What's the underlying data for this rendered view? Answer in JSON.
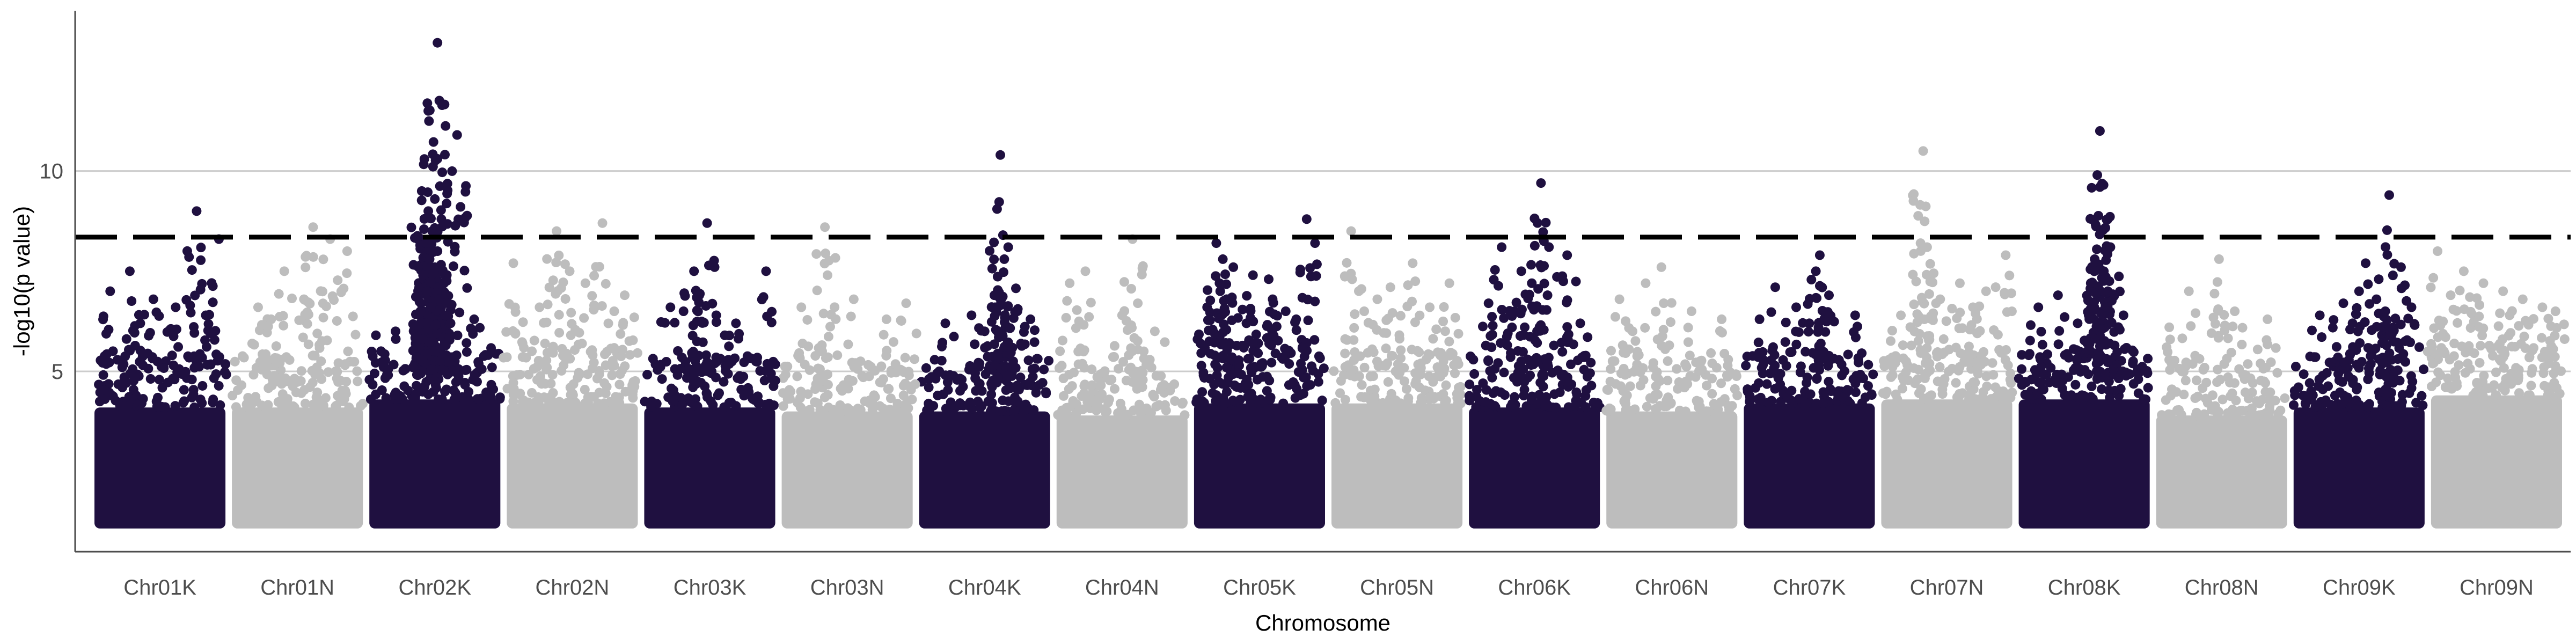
{
  "chart_data": {
    "type": "scatter",
    "subtype": "manhattan",
    "title": "",
    "xlabel": "Chromosome",
    "ylabel": "-log10(p value)",
    "ylim": [
      0.5,
      14
    ],
    "yticks": [
      5,
      10
    ],
    "grid": {
      "horizontal_major": true,
      "vertical": false
    },
    "threshold": {
      "y": 8.35,
      "style": "dashed",
      "color": "#000000"
    },
    "colors": {
      "odd": "#1f1040",
      "even": "#bdbdbd",
      "grid": "#cccccc",
      "axis": "#4d4d4d"
    },
    "chromosomes": [
      {
        "name": "Chr01K",
        "base_max": 4.7,
        "peaks": [
          [
            0.78,
            9.0
          ],
          [
            0.95,
            8.3
          ],
          [
            0.27,
            7.5
          ],
          [
            0.12,
            7.0
          ],
          [
            0.45,
            6.8
          ],
          [
            0.62,
            6.6
          ],
          [
            0.85,
            6.4
          ],
          [
            0.35,
            6.2
          ]
        ]
      },
      {
        "name": "Chr01N",
        "base_max": 4.7,
        "peaks": [
          [
            0.62,
            8.6
          ],
          [
            0.88,
            8.0
          ],
          [
            0.75,
            8.3
          ],
          [
            0.4,
            7.5
          ],
          [
            0.2,
            6.6
          ],
          [
            0.55,
            6.8
          ],
          [
            0.3,
            6.3
          ]
        ]
      },
      {
        "name": "Chr02K",
        "base_max": 4.9,
        "peaks": [
          [
            0.52,
            13.2
          ],
          [
            0.45,
            11.5
          ],
          [
            0.67,
            10.9
          ],
          [
            0.42,
            10.3
          ],
          [
            0.4,
            9.5
          ],
          [
            0.5,
            9.3
          ],
          [
            0.45,
            9.0
          ],
          [
            0.55,
            8.8
          ],
          [
            0.48,
            8.5
          ],
          [
            0.43,
            8.2
          ],
          [
            0.52,
            8.0
          ],
          [
            0.46,
            7.8
          ],
          [
            0.5,
            7.6
          ],
          [
            0.41,
            7.4
          ],
          [
            0.57,
            7.2
          ],
          [
            0.44,
            7.0
          ],
          [
            0.53,
            6.8
          ],
          [
            0.47,
            6.6
          ],
          [
            0.39,
            6.5
          ],
          [
            0.58,
            6.4
          ],
          [
            0.62,
            6.2
          ],
          [
            0.35,
            6.1
          ],
          [
            0.8,
            6.3
          ],
          [
            0.2,
            6.0
          ],
          [
            0.05,
            5.9
          ]
        ]
      },
      {
        "name": "Chr02N",
        "base_max": 4.8,
        "peaks": [
          [
            0.73,
            8.7
          ],
          [
            0.38,
            8.5
          ],
          [
            0.05,
            7.7
          ],
          [
            0.48,
            7.5
          ],
          [
            0.9,
            6.9
          ],
          [
            0.6,
            7.2
          ],
          [
            0.25,
            6.6
          ],
          [
            0.82,
            6.5
          ]
        ]
      },
      {
        "name": "Chr03K",
        "base_max": 4.7,
        "peaks": [
          [
            0.48,
            8.7
          ],
          [
            0.93,
            7.5
          ],
          [
            0.38,
            7.5
          ],
          [
            0.2,
            6.6
          ],
          [
            0.55,
            6.4
          ],
          [
            0.7,
            6.2
          ],
          [
            0.3,
            6.5
          ],
          [
            0.42,
            6.9
          ]
        ]
      },
      {
        "name": "Chr03N",
        "base_max": 4.6,
        "peaks": [
          [
            0.33,
            8.6
          ],
          [
            0.35,
            7.4
          ],
          [
            0.55,
            6.8
          ],
          [
            0.8,
            6.3
          ],
          [
            0.15,
            6.6
          ],
          [
            0.95,
            6.7
          ]
        ]
      },
      {
        "name": "Chr04K",
        "base_max": 4.6,
        "peaks": [
          [
            0.62,
            10.4
          ],
          [
            0.64,
            8.4
          ],
          [
            0.68,
            8.1
          ],
          [
            0.65,
            7.8
          ],
          [
            0.6,
            7.0
          ],
          [
            0.58,
            6.6
          ],
          [
            0.4,
            6.4
          ],
          [
            0.75,
            6.5
          ],
          [
            0.2,
            6.2
          ],
          [
            0.85,
            6.3
          ],
          [
            0.5,
            6.0
          ]
        ]
      },
      {
        "name": "Chr04N",
        "base_max": 4.5,
        "peaks": [
          [
            0.58,
            8.3
          ],
          [
            0.22,
            7.5
          ],
          [
            0.1,
            7.2
          ],
          [
            0.62,
            6.7
          ],
          [
            0.5,
            6.4
          ],
          [
            0.75,
            6.0
          ]
        ]
      },
      {
        "name": "Chr05K",
        "base_max": 4.8,
        "peaks": [
          [
            0.86,
            8.8
          ],
          [
            0.17,
            8.2
          ],
          [
            0.22,
            7.8
          ],
          [
            0.3,
            7.6
          ],
          [
            0.45,
            7.4
          ],
          [
            0.57,
            7.3
          ],
          [
            0.2,
            7.0
          ],
          [
            0.6,
            6.8
          ],
          [
            0.7,
            6.5
          ],
          [
            0.1,
            6.6
          ],
          [
            0.4,
            6.2
          ],
          [
            0.78,
            6.3
          ]
        ]
      },
      {
        "name": "Chr05N",
        "base_max": 4.8,
        "peaks": [
          [
            0.15,
            8.5
          ],
          [
            0.62,
            7.7
          ],
          [
            0.45,
            7.1
          ],
          [
            0.35,
            6.8
          ],
          [
            0.9,
            7.2
          ],
          [
            0.75,
            6.6
          ],
          [
            0.25,
            6.5
          ]
        ]
      },
      {
        "name": "Chr06K",
        "base_max": 4.7,
        "peaks": [
          [
            0.55,
            9.7
          ],
          [
            0.25,
            8.1
          ],
          [
            0.75,
            7.9
          ],
          [
            0.4,
            7.5
          ],
          [
            0.48,
            7.2
          ],
          [
            0.6,
            6.9
          ],
          [
            0.15,
            6.7
          ],
          [
            0.35,
            6.5
          ],
          [
            0.85,
            6.2
          ],
          [
            0.52,
            6.0
          ]
        ]
      },
      {
        "name": "Chr06N",
        "base_max": 4.6,
        "peaks": [
          [
            0.42,
            7.6
          ],
          [
            0.3,
            7.2
          ],
          [
            0.1,
            6.8
          ],
          [
            0.65,
            6.5
          ],
          [
            0.88,
            6.3
          ],
          [
            0.2,
            6.0
          ]
        ]
      },
      {
        "name": "Chr07K",
        "base_max": 4.8,
        "peaks": [
          [
            0.58,
            7.9
          ],
          [
            0.55,
            7.5
          ],
          [
            0.24,
            7.1
          ],
          [
            0.12,
            6.3
          ],
          [
            0.4,
            6.6
          ],
          [
            0.65,
            6.9
          ],
          [
            0.85,
            6.4
          ],
          [
            0.5,
            6.2
          ]
        ]
      },
      {
        "name": "Chr07N",
        "base_max": 4.9,
        "peaks": [
          [
            0.32,
            10.5
          ],
          [
            0.3,
            8.2
          ],
          [
            0.35,
            8.1
          ],
          [
            0.95,
            7.9
          ],
          [
            0.6,
            7.2
          ],
          [
            0.8,
            7.0
          ],
          [
            0.45,
            6.8
          ],
          [
            0.7,
            6.6
          ],
          [
            0.15,
            6.4
          ]
        ]
      },
      {
        "name": "Chr08K",
        "base_max": 4.9,
        "peaks": [
          [
            0.62,
            11.0
          ],
          [
            0.6,
            9.9
          ],
          [
            0.62,
            9.6
          ],
          [
            0.58,
            7.8
          ],
          [
            0.7,
            8.1
          ],
          [
            0.65,
            7.5
          ],
          [
            0.55,
            7.2
          ],
          [
            0.3,
            6.9
          ],
          [
            0.15,
            6.6
          ],
          [
            0.8,
            6.4
          ],
          [
            0.45,
            6.2
          ],
          [
            0.68,
            7.0
          ]
        ]
      },
      {
        "name": "Chr08N",
        "base_max": 4.5,
        "peaks": [
          [
            0.48,
            7.8
          ],
          [
            0.25,
            7.0
          ],
          [
            0.6,
            6.5
          ],
          [
            0.85,
            6.3
          ],
          [
            0.1,
            6.1
          ]
        ]
      },
      {
        "name": "Chr09K",
        "base_max": 4.7,
        "peaks": [
          [
            0.73,
            9.4
          ],
          [
            0.55,
            7.7
          ],
          [
            0.82,
            7.6
          ],
          [
            0.65,
            7.3
          ],
          [
            0.5,
            7.0
          ],
          [
            0.38,
            6.7
          ],
          [
            0.2,
            6.4
          ],
          [
            0.9,
            6.6
          ],
          [
            0.45,
            6.2
          ],
          [
            0.7,
            6.5
          ]
        ]
      },
      {
        "name": "Chr09N",
        "base_max": 5.0,
        "peaks": [
          [
            0.05,
            8.0
          ],
          [
            0.25,
            7.5
          ],
          [
            0.4,
            7.2
          ],
          [
            0.55,
            7.0
          ],
          [
            0.7,
            6.8
          ],
          [
            0.85,
            6.6
          ],
          [
            0.15,
            6.9
          ],
          [
            0.95,
            6.5
          ],
          [
            0.6,
            6.4
          ]
        ]
      }
    ]
  }
}
